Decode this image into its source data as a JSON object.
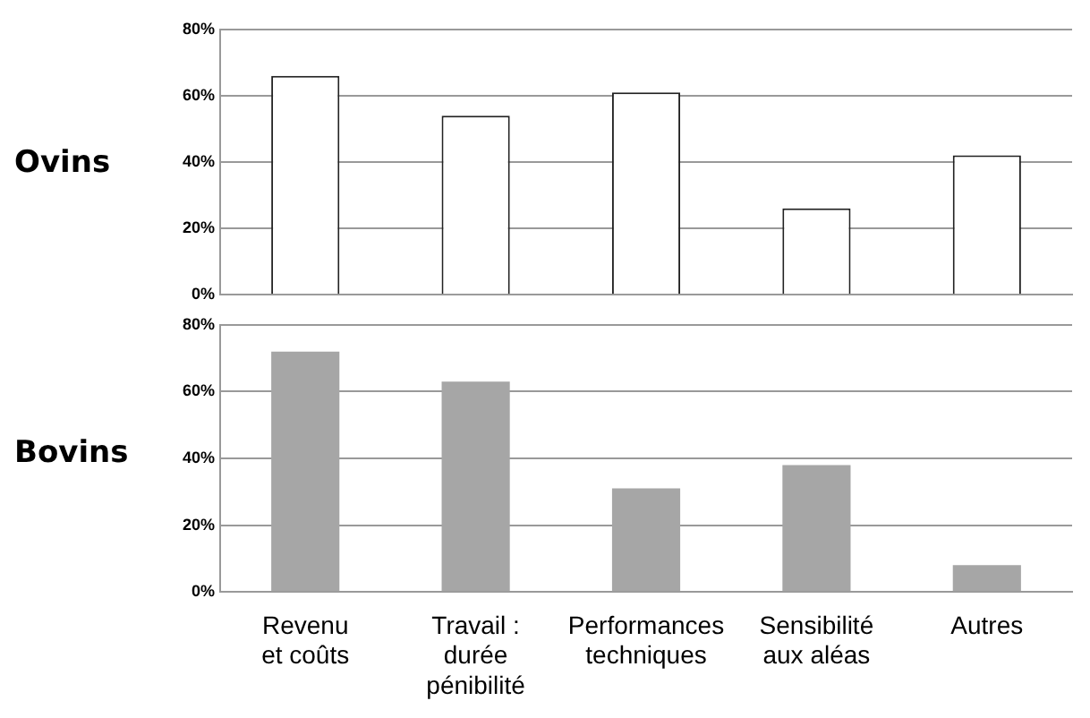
{
  "chart_data": [
    {
      "type": "bar",
      "ylabel": "Ovins",
      "categories": [
        null,
        null,
        null,
        null,
        null
      ],
      "values": [
        66,
        54,
        61,
        26,
        42
      ],
      "color": "#ffffff",
      "ylim": [
        0,
        80
      ],
      "yticks": [
        {
          "value": 0,
          "label": "0%"
        },
        {
          "value": 20,
          "label": "20%"
        },
        {
          "value": 40,
          "label": "40%"
        },
        {
          "value": 60,
          "label": "60%"
        },
        {
          "value": 80,
          "label": "80%"
        }
      ],
      "grid": "y",
      "tick_labels": "y"
    },
    {
      "type": "bar",
      "ylabel": "Bovins",
      "categories": [
        "Revenu\net coûts",
        "Travail :\ndurée\npénibilité",
        "Performances\ntechniques",
        "Sensibilité\naux aléas",
        "Autres"
      ],
      "values": [
        72,
        63,
        31,
        38,
        8
      ],
      "color": "#a6a6a6",
      "ylim": [
        0,
        80
      ],
      "yticks": [
        {
          "value": 0,
          "label": "0%"
        },
        {
          "value": 20,
          "label": "20%"
        },
        {
          "value": 40,
          "label": "40%"
        },
        {
          "value": 60,
          "label": "60%"
        },
        {
          "value": 80,
          "label": "80%"
        }
      ],
      "grid": "y"
    }
  ]
}
